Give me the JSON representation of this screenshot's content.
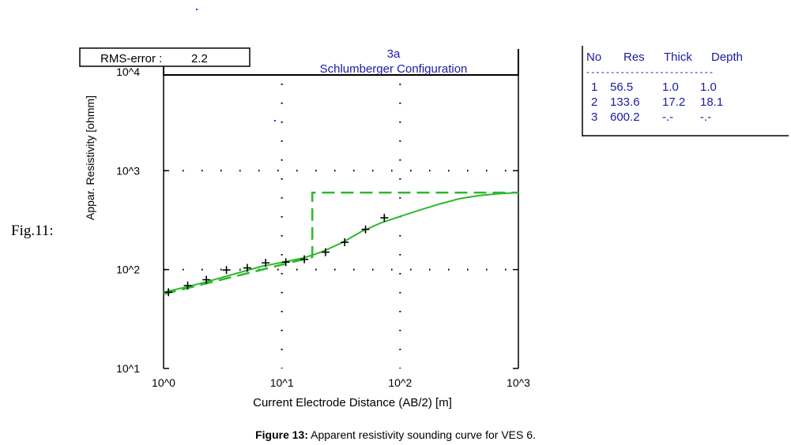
{
  "figure_label": "Fig.11:",
  "caption": {
    "bold": "Figure 13:",
    "text": " Apparent resistivity sounding curve for VES 6."
  },
  "rms_box": {
    "label": "RMS-error :",
    "value": "2.2"
  },
  "chart_data": {
    "type": "line",
    "title": "3a",
    "subtitle": "Schlumberger Configuration",
    "xlabel": "Current Electrode Distance (AB/2) [m]",
    "ylabel": "Appar. Resistivity [ohmm]",
    "xscale": "log",
    "yscale": "log",
    "xlim": [
      1,
      1000
    ],
    "ylim": [
      10,
      10000
    ],
    "x_ticks": [
      1,
      10,
      100,
      1000
    ],
    "x_tick_labels": [
      "10^0",
      "10^1",
      "10^2",
      "10^3"
    ],
    "y_ticks": [
      10,
      100,
      1000,
      10000
    ],
    "y_tick_labels": [
      "10^1",
      "10^2",
      "10^3",
      "10^4"
    ],
    "grid": "dotted",
    "colors": {
      "model": "#2db82d",
      "observed": "#000000",
      "text_blue": "#1a1aa6"
    },
    "observed": {
      "x": [
        1.1,
        1.6,
        2.3,
        3.4,
        5.1,
        7.3,
        10.8,
        15.5,
        23.4,
        34.0,
        51.0,
        73.5
      ],
      "y": [
        59,
        69,
        79,
        99,
        104,
        117,
        119,
        127,
        150,
        189,
        255,
        334
      ]
    },
    "calculated_curve": {
      "x": [
        1.0,
        1.5,
        2.2,
        3.2,
        4.6,
        6.8,
        10,
        14.7,
        18,
        21.5,
        31.6,
        46.4,
        68,
        100,
        147,
        215,
        316,
        464,
        681,
        1000
      ],
      "y": [
        59,
        66,
        74,
        84,
        95,
        108,
        118,
        130,
        140,
        150,
        185,
        240,
        295,
        345,
        400,
        460,
        520,
        560,
        585,
        600
      ]
    },
    "layered_model": {
      "x": [
        1.0,
        18.1,
        18.1,
        1000
      ],
      "y": [
        56.5,
        133.6,
        600.2,
        600.2
      ]
    }
  },
  "layer_table": {
    "headers": [
      "No",
      "Res",
      "Thick",
      "Depth"
    ],
    "separator": "--------------------------",
    "rows": [
      [
        "1",
        "56.5",
        "1.0",
        "1.0"
      ],
      [
        "2",
        "133.6",
        "17.2",
        "18.1"
      ],
      [
        "3",
        "600.2",
        "-.-",
        "-.-"
      ]
    ]
  }
}
